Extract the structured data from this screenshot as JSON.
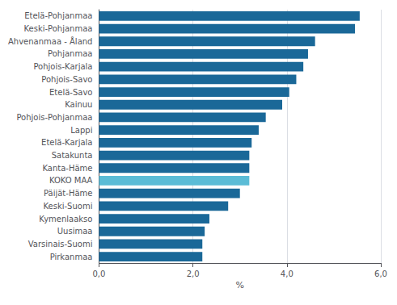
{
  "chart_data": {
    "type": "bar",
    "orientation": "horizontal",
    "categories": [
      "Pirkanmaa",
      "Varsinais-Suomi",
      "Uusimaa",
      "Kymenlaakso",
      "Keski-Suomi",
      "Päijät-Häme",
      "KOKO MAA",
      "Kanta-Häme",
      "Satakunta",
      "Etelä-Karjala",
      "Lappi",
      "Pohjois-Pohjanmaa",
      "Kainuu",
      "Etelä-Savo",
      "Pohjois-Savo",
      "Pohjois-Karjala",
      "Pohjanmaa",
      "Ahvenanmaa - Åland",
      "Keski-Pohjanmaa",
      "Etelä-Pohjanmaa"
    ],
    "values": [
      2.2,
      2.2,
      2.25,
      2.35,
      2.75,
      3.0,
      3.2,
      3.2,
      3.2,
      3.25,
      3.4,
      3.55,
      3.9,
      4.05,
      4.2,
      4.35,
      4.45,
      4.6,
      5.45,
      5.55
    ],
    "colors": [
      "#1a6898",
      "#1a6898",
      "#1a6898",
      "#1a6898",
      "#1a6898",
      "#1a6898",
      "#5bbcd6",
      "#1a6898",
      "#1a6898",
      "#1a6898",
      "#1a6898",
      "#1a6898",
      "#1a6898",
      "#1a6898",
      "#1a6898",
      "#1a6898",
      "#1a6898",
      "#1a6898",
      "#1a6898",
      "#1a6898"
    ],
    "xlabel": "%",
    "xlim": [
      0,
      6.0
    ],
    "xticks": [
      {
        "value": 0.0,
        "label": "0,0"
      },
      {
        "value": 2.0,
        "label": "2,0"
      },
      {
        "value": 4.0,
        "label": "4,0"
      },
      {
        "value": 6.0,
        "label": "6,0"
      }
    ],
    "grid": true
  }
}
